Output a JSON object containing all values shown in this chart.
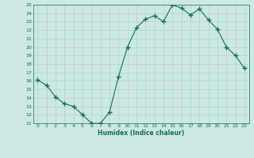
{
  "x": [
    0,
    1,
    2,
    3,
    4,
    5,
    6,
    7,
    8,
    9,
    10,
    11,
    12,
    13,
    14,
    15,
    16,
    17,
    18,
    19,
    20,
    21,
    22,
    23
  ],
  "y": [
    16.1,
    15.5,
    14.1,
    13.3,
    13.0,
    12.0,
    11.0,
    11.0,
    12.3,
    16.5,
    20.0,
    22.3,
    23.3,
    23.7,
    23.0,
    25.0,
    24.6,
    23.8,
    24.5,
    23.2,
    22.1,
    20.0,
    19.0,
    17.5
  ],
  "xlabel": "Humidex (Indice chaleur)",
  "ylabel": "",
  "title": "",
  "line_color": "#1a6b5a",
  "marker_color": "#1a6b5a",
  "bg_color": "#cce8e3",
  "grid_color": "#aed4ce",
  "xlabel_color": "#1a6b5a",
  "tick_color": "#1a6b5a",
  "ylim": [
    11,
    25
  ],
  "xlim_min": -0.5,
  "xlim_max": 23.5,
  "yticks": [
    11,
    12,
    13,
    14,
    15,
    16,
    17,
    18,
    19,
    20,
    21,
    22,
    23,
    24,
    25
  ],
  "xticks": [
    0,
    1,
    2,
    3,
    4,
    5,
    6,
    7,
    8,
    9,
    10,
    11,
    12,
    13,
    14,
    15,
    16,
    17,
    18,
    19,
    20,
    21,
    22,
    23
  ]
}
